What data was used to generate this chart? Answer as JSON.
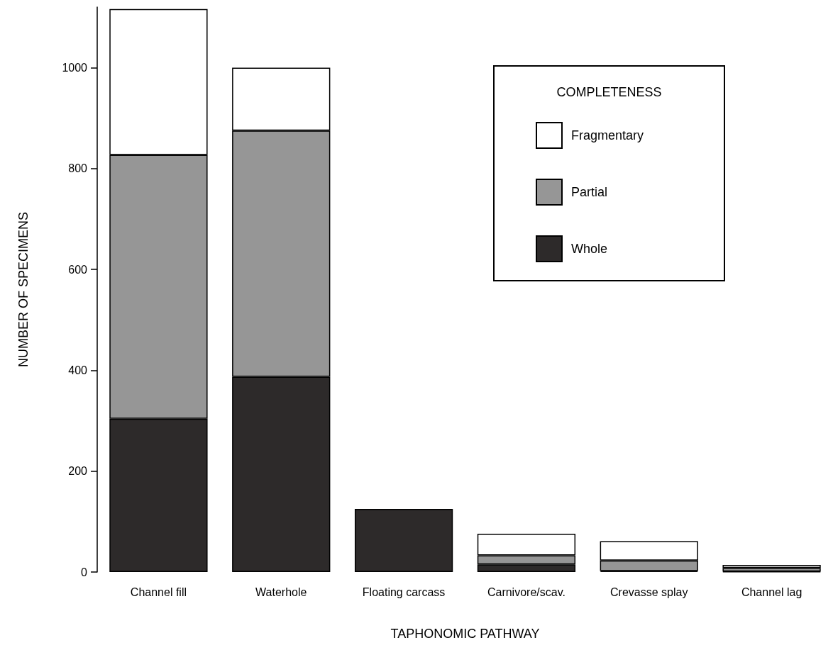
{
  "chart_data": {
    "type": "bar",
    "stacked": true,
    "xlabel": "TAPHONOMIC PATHWAY",
    "ylabel": "NUMBER OF SPECIMENS",
    "legend_title": "COMPLETENESS",
    "categories": [
      "Channel fill",
      "Waterhole",
      "Floating carcass",
      "Carnivore/scav.",
      "Crevasse splay",
      "Channel lag"
    ],
    "series": [
      {
        "name": "Whole",
        "color": "#2d2a2a",
        "values": [
          304,
          387,
          125,
          15,
          2,
          1
        ]
      },
      {
        "name": "Partial",
        "color": "#969696",
        "values": [
          523,
          488,
          0,
          18,
          21,
          7
        ]
      },
      {
        "name": "Fragmentary",
        "color": "#ffffff",
        "values": [
          289,
          125,
          0,
          43,
          38,
          6
        ]
      }
    ],
    "ylim": [
      0,
      1120
    ],
    "yticks": [
      0,
      200,
      400,
      600,
      800,
      1000
    ],
    "grid": false,
    "legend": "top right"
  }
}
